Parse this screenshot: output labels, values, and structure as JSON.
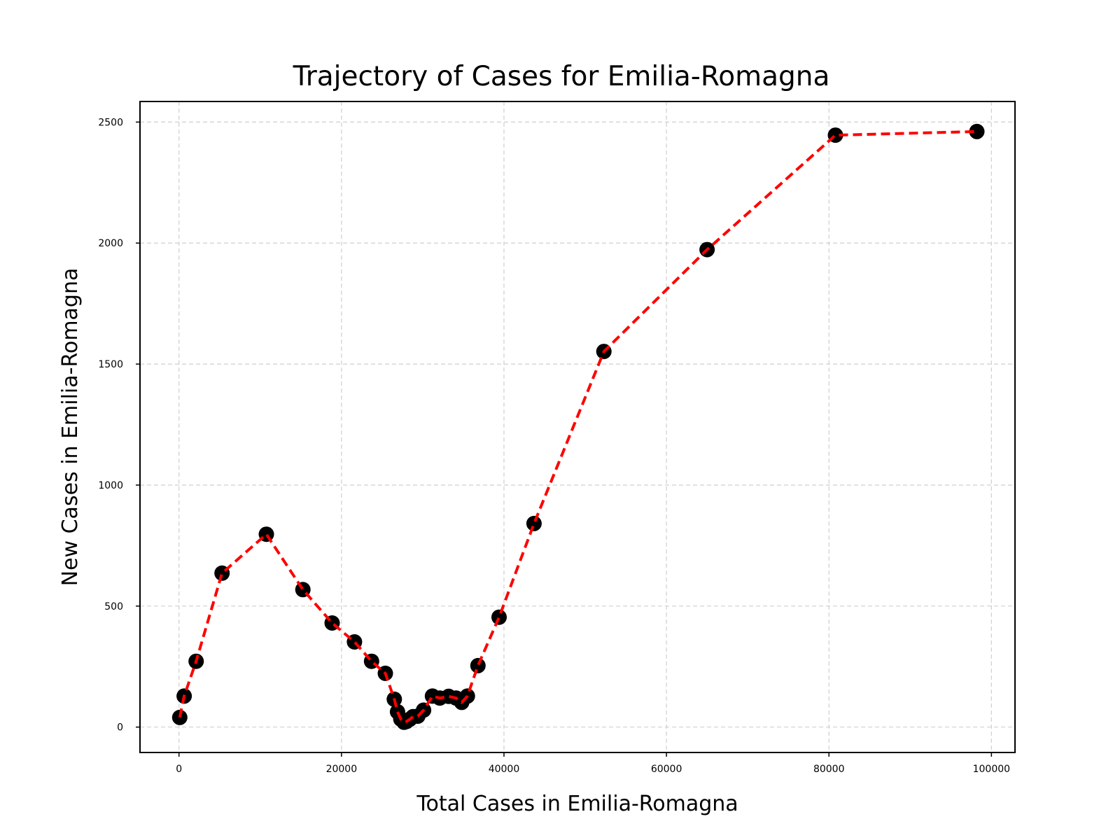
{
  "chart_data": {
    "type": "scatter",
    "title": "Trajectory of Cases for Emilia-Romagna",
    "xlabel": "Total Cases in Emilia-Romagna",
    "ylabel": "New Cases in Emilia-Romagna",
    "xlim": [
      -4800,
      102900
    ],
    "ylim": [
      -105,
      2585
    ],
    "xticks": [
      0,
      20000,
      40000,
      60000,
      80000,
      100000
    ],
    "yticks": [
      0,
      500,
      1000,
      1500,
      2000,
      2500
    ],
    "grid": true,
    "line_color": "#ff0000",
    "marker_color": "#000000",
    "series": [
      {
        "x": [
          97,
          640,
          2110,
          5300,
          10750,
          15250,
          18850,
          21600,
          23700,
          25400,
          26500,
          26900,
          27300,
          27700,
          28000,
          28400,
          28800,
          29400,
          30100,
          31200,
          32100,
          33200,
          34100,
          34800,
          35500,
          36800,
          39400,
          43700,
          52300,
          65000,
          80800,
          98200
        ],
        "y": [
          40,
          128,
          272,
          636,
          797,
          568,
          430,
          352,
          272,
          222,
          115,
          63,
          33,
          20,
          23,
          32,
          43,
          45,
          70,
          128,
          120,
          127,
          120,
          102,
          128,
          254,
          454,
          841,
          1552,
          1973,
          2446,
          2461
        ]
      }
    ]
  }
}
